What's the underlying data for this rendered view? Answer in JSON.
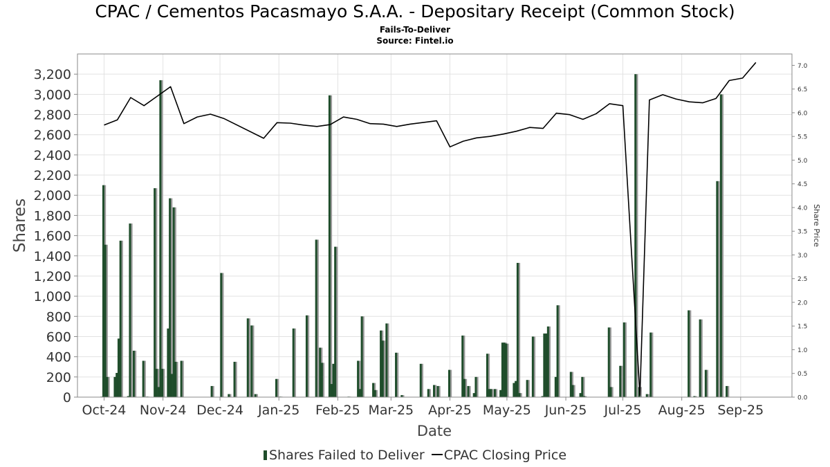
{
  "chart_data": {
    "type": "bar",
    "title": "CPAC / Cementos Pacasmayo S.A.A. - Depositary Receipt (Common Stock)",
    "subtitle": "Fails-To-Deliver",
    "source": "Source: Fintel.io",
    "xlabel": "Date",
    "ylabel": "Shares",
    "y2label": "Share Price",
    "x_range": [
      "2024-09-17",
      "2025-09-28"
    ],
    "ylim": [
      0,
      3400
    ],
    "y2lim": [
      0,
      7.24
    ],
    "y_ticks": [
      0,
      200,
      400,
      600,
      800,
      1000,
      1200,
      1400,
      1600,
      1800,
      2000,
      2200,
      2400,
      2600,
      2800,
      3000,
      3200
    ],
    "y2_ticks": [
      0,
      0.5,
      1.0,
      1.5,
      2.0,
      2.5,
      3.0,
      3.5,
      4.0,
      4.5,
      5.0,
      5.5,
      6.0,
      6.5,
      7.0
    ],
    "x_ticks": [
      {
        "label": "Oct-24",
        "date": "2024-10-01"
      },
      {
        "label": "Nov-24",
        "date": "2024-11-01"
      },
      {
        "label": "Dec-24",
        "date": "2024-12-01"
      },
      {
        "label": "Jan-25",
        "date": "2025-01-01"
      },
      {
        "label": "Feb-25",
        "date": "2025-02-01"
      },
      {
        "label": "Mar-25",
        "date": "2025-03-01"
      },
      {
        "label": "Apr-25",
        "date": "2025-04-01"
      },
      {
        "label": "May-25",
        "date": "2025-05-01"
      },
      {
        "label": "Jun-25",
        "date": "2025-06-01"
      },
      {
        "label": "Jul-25",
        "date": "2025-07-01"
      },
      {
        "label": "Aug-25",
        "date": "2025-08-01"
      },
      {
        "label": "Sep-25",
        "date": "2025-09-01"
      }
    ],
    "grid": true,
    "legend_position": "bottom",
    "colors": {
      "bar": "#1f4d2b",
      "bar_shadow": "#9a9a9a",
      "line": "#000000",
      "grid": "#e2e2e2"
    },
    "series": [
      {
        "name": "Shares Failed to Deliver",
        "type": "bar",
        "points": [
          [
            "2024-09-30",
            5
          ],
          [
            "2024-10-01",
            2100
          ],
          [
            "2024-10-02",
            1510
          ],
          [
            "2024-10-03",
            200
          ],
          [
            "2024-10-07",
            200
          ],
          [
            "2024-10-08",
            240
          ],
          [
            "2024-10-09",
            580
          ],
          [
            "2024-10-10",
            1550
          ],
          [
            "2024-10-14",
            10
          ],
          [
            "2024-10-15",
            1720
          ],
          [
            "2024-10-17",
            460
          ],
          [
            "2024-10-22",
            360
          ],
          [
            "2024-10-24",
            5
          ],
          [
            "2024-10-28",
            2070
          ],
          [
            "2024-10-29",
            280
          ],
          [
            "2024-10-30",
            100
          ],
          [
            "2024-10-31",
            3140
          ],
          [
            "2024-11-01",
            280
          ],
          [
            "2024-11-04",
            680
          ],
          [
            "2024-11-05",
            1970
          ],
          [
            "2024-11-06",
            230
          ],
          [
            "2024-11-07",
            1880
          ],
          [
            "2024-11-08",
            350
          ],
          [
            "2024-11-11",
            360
          ],
          [
            "2024-11-27",
            110
          ],
          [
            "2024-12-02",
            1230
          ],
          [
            "2024-12-06",
            30
          ],
          [
            "2024-12-09",
            350
          ],
          [
            "2024-12-16",
            780
          ],
          [
            "2024-12-18",
            710
          ],
          [
            "2024-12-20",
            30
          ],
          [
            "2024-12-30",
            0
          ],
          [
            "2024-12-31",
            180
          ],
          [
            "2025-01-02",
            5
          ],
          [
            "2025-01-09",
            680
          ],
          [
            "2025-01-16",
            810
          ],
          [
            "2025-01-21",
            1560
          ],
          [
            "2025-01-23",
            490
          ],
          [
            "2025-01-24",
            340
          ],
          [
            "2025-01-28",
            2990
          ],
          [
            "2025-01-29",
            130
          ],
          [
            "2025-01-30",
            330
          ],
          [
            "2025-01-31",
            1490
          ],
          [
            "2025-02-07",
            5
          ],
          [
            "2025-02-12",
            360
          ],
          [
            "2025-02-13",
            80
          ],
          [
            "2025-02-14",
            800
          ],
          [
            "2025-02-20",
            140
          ],
          [
            "2025-02-21",
            70
          ],
          [
            "2025-02-24",
            660
          ],
          [
            "2025-02-25",
            560
          ],
          [
            "2025-02-27",
            730
          ],
          [
            "2025-03-04",
            440
          ],
          [
            "2025-03-07",
            20
          ],
          [
            "2025-03-17",
            330
          ],
          [
            "2025-03-21",
            80
          ],
          [
            "2025-03-24",
            120
          ],
          [
            "2025-03-26",
            110
          ],
          [
            "2025-04-01",
            270
          ],
          [
            "2025-04-08",
            610
          ],
          [
            "2025-04-09",
            180
          ],
          [
            "2025-04-11",
            110
          ],
          [
            "2025-04-14",
            40
          ],
          [
            "2025-04-15",
            200
          ],
          [
            "2025-04-21",
            430
          ],
          [
            "2025-04-22",
            80
          ],
          [
            "2025-04-23",
            80
          ],
          [
            "2025-04-25",
            80
          ],
          [
            "2025-04-28",
            70
          ],
          [
            "2025-04-29",
            540
          ],
          [
            "2025-04-30",
            540
          ],
          [
            "2025-05-01",
            530
          ],
          [
            "2025-05-05",
            140
          ],
          [
            "2025-05-06",
            160
          ],
          [
            "2025-05-07",
            1330
          ],
          [
            "2025-05-08",
            40
          ],
          [
            "2025-05-12",
            170
          ],
          [
            "2025-05-15",
            600
          ],
          [
            "2025-05-20",
            10
          ],
          [
            "2025-05-21",
            630
          ],
          [
            "2025-05-22",
            630
          ],
          [
            "2025-05-23",
            700
          ],
          [
            "2025-05-27",
            200
          ],
          [
            "2025-05-28",
            910
          ],
          [
            "2025-06-04",
            250
          ],
          [
            "2025-06-05",
            120
          ],
          [
            "2025-06-09",
            40
          ],
          [
            "2025-06-10",
            200
          ],
          [
            "2025-06-11",
            10
          ],
          [
            "2025-06-24",
            690
          ],
          [
            "2025-06-25",
            100
          ],
          [
            "2025-06-30",
            310
          ],
          [
            "2025-07-02",
            740
          ],
          [
            "2025-07-08",
            3200
          ],
          [
            "2025-07-10",
            100
          ],
          [
            "2025-07-14",
            30
          ],
          [
            "2025-07-16",
            640
          ],
          [
            "2025-08-05",
            860
          ],
          [
            "2025-08-08",
            10
          ],
          [
            "2025-08-11",
            770
          ],
          [
            "2025-08-14",
            270
          ],
          [
            "2025-08-20",
            2140
          ],
          [
            "2025-08-22",
            3000
          ],
          [
            "2025-08-25",
            110
          ]
        ]
      },
      {
        "name": "CPAC Closing Price",
        "type": "line",
        "points": [
          [
            "2024-10-01",
            5.74
          ],
          [
            "2024-10-08",
            5.85
          ],
          [
            "2024-10-15",
            6.32
          ],
          [
            "2024-10-22",
            6.15
          ],
          [
            "2024-10-29",
            6.35
          ],
          [
            "2024-11-05",
            6.55
          ],
          [
            "2024-11-12",
            5.77
          ],
          [
            "2024-11-19",
            5.91
          ],
          [
            "2024-11-26",
            5.97
          ],
          [
            "2024-12-03",
            5.88
          ],
          [
            "2024-12-24",
            5.46
          ],
          [
            "2024-12-31",
            5.79
          ],
          [
            "2025-01-07",
            5.78
          ],
          [
            "2025-01-14",
            5.74
          ],
          [
            "2025-01-21",
            5.71
          ],
          [
            "2025-01-28",
            5.75
          ],
          [
            "2025-02-04",
            5.91
          ],
          [
            "2025-02-11",
            5.86
          ],
          [
            "2025-02-18",
            5.77
          ],
          [
            "2025-02-25",
            5.76
          ],
          [
            "2025-03-04",
            5.71
          ],
          [
            "2025-03-11",
            5.76
          ],
          [
            "2025-03-25",
            5.83
          ],
          [
            "2025-04-01",
            5.28
          ],
          [
            "2025-04-08",
            5.4
          ],
          [
            "2025-04-15",
            5.47
          ],
          [
            "2025-04-22",
            5.5
          ],
          [
            "2025-04-29",
            5.55
          ],
          [
            "2025-05-06",
            5.61
          ],
          [
            "2025-05-13",
            5.69
          ],
          [
            "2025-05-20",
            5.67
          ],
          [
            "2025-05-27",
            5.99
          ],
          [
            "2025-06-03",
            5.96
          ],
          [
            "2025-06-10",
            5.86
          ],
          [
            "2025-06-17",
            5.98
          ],
          [
            "2025-06-24",
            6.19
          ],
          [
            "2025-07-01",
            6.15
          ],
          [
            "2025-07-10",
            0.04
          ],
          [
            "2025-07-15",
            6.27
          ],
          [
            "2025-07-22",
            6.38
          ],
          [
            "2025-07-29",
            6.29
          ],
          [
            "2025-08-05",
            6.23
          ],
          [
            "2025-08-12",
            6.21
          ],
          [
            "2025-08-19",
            6.3
          ],
          [
            "2025-08-26",
            6.68
          ],
          [
            "2025-09-02",
            6.73
          ],
          [
            "2025-09-09",
            7.06
          ]
        ]
      }
    ]
  }
}
